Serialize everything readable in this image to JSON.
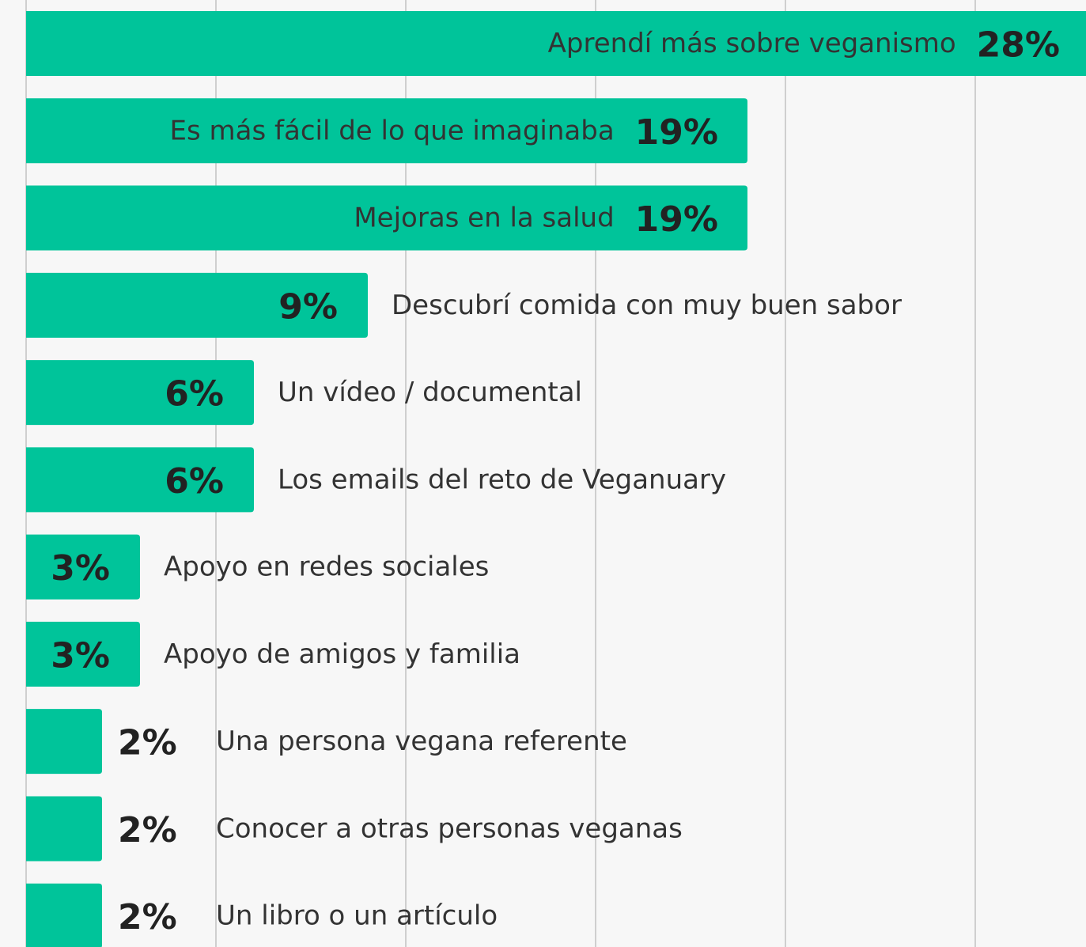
{
  "chart_data": {
    "type": "bar",
    "orientation": "horizontal",
    "categories": [
      "Aprendí más sobre veganismo",
      "Es más fácil de lo que imaginaba",
      "Mejoras en la salud",
      "Descubrí comida con muy buen sabor",
      "Un vídeo / documental",
      "Los emails del reto de Veganuary",
      "Apoyo en redes sociales",
      "Apoyo de amigos y familia",
      "Una persona vegana referente",
      "Conocer a otras personas veganas",
      "Un libro o un artículo"
    ],
    "values": [
      28,
      19,
      19,
      9,
      6,
      6,
      3,
      3,
      2,
      2,
      2
    ],
    "value_labels": [
      "28%",
      "19%",
      "19%",
      "9%",
      "6%",
      "6%",
      "3%",
      "3%",
      "2%",
      "2%",
      "2%"
    ],
    "color": "#00c49a",
    "xlim": [
      0,
      28
    ],
    "xticks": [
      0,
      5,
      10,
      15,
      20,
      25
    ],
    "grid": true
  }
}
